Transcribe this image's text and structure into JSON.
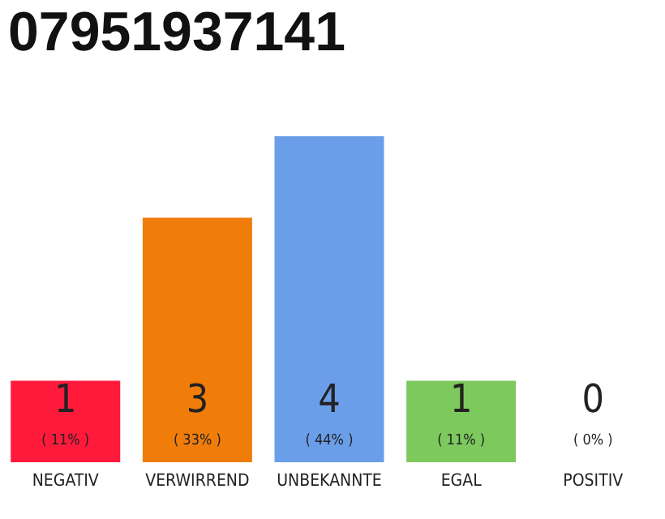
{
  "chart_data": {
    "type": "bar",
    "title": "07951937141",
    "categories": [
      "NEGATIV",
      "VERWIRREND",
      "UNBEKANNTE",
      "EGAL",
      "POSITIV"
    ],
    "values": [
      1,
      3,
      4,
      1,
      0
    ],
    "colors": [
      "#ff1a3c",
      "#f07d0a",
      "#6a9ee8",
      "#7dc95e",
      "#eeeeee"
    ],
    "data_labels": true,
    "annotations": [
      "( 11% )",
      "( 33% )",
      "( 44% )",
      "( 11% )",
      "( 0% )"
    ]
  }
}
